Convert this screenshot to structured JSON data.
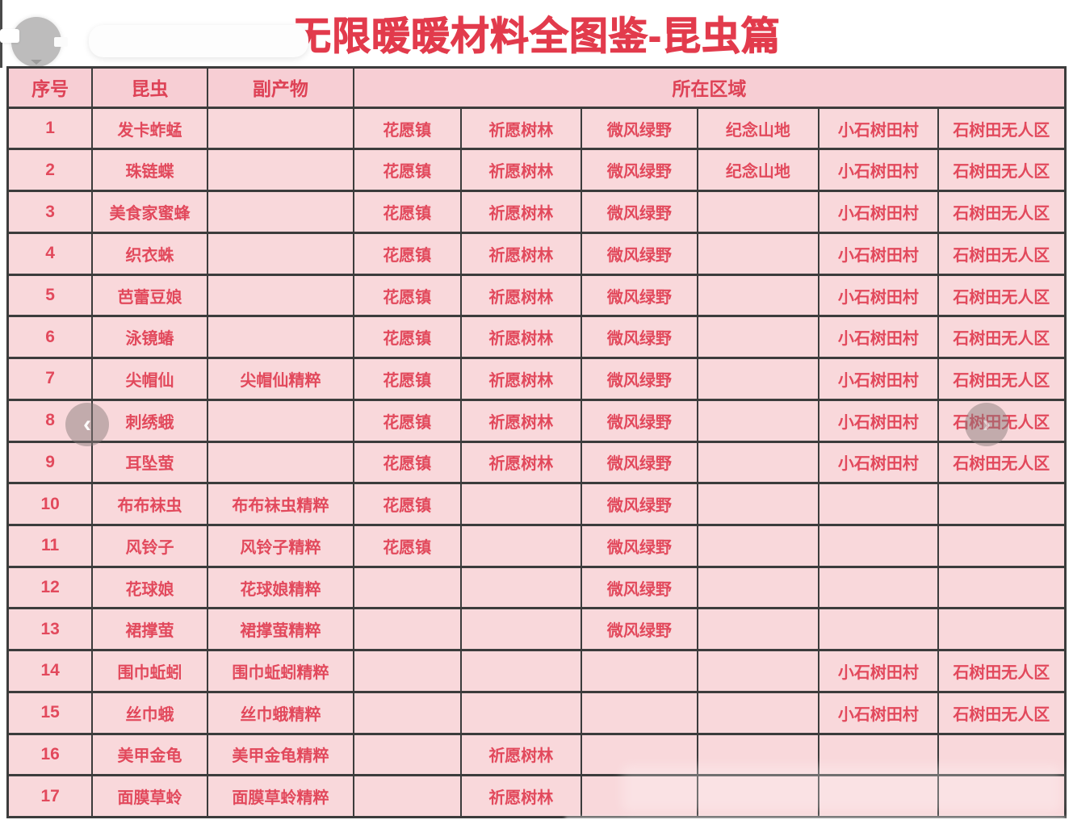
{
  "title": "无限暖暖材料全图鉴-昆虫篇",
  "table": {
    "headers": {
      "index": "序号",
      "insect": "昆虫",
      "byproduct": "副产物",
      "region": "所在区域"
    },
    "region_columns": [
      "花愿镇",
      "祈愿树林",
      "微风绿野",
      "纪念山地",
      "小石树田村",
      "石树田无人区"
    ],
    "rows": [
      {
        "no": "1",
        "insect": "发卡蚱蜢",
        "byproduct": "",
        "regions": [
          "花愿镇",
          "祈愿树林",
          "微风绿野",
          "纪念山地",
          "小石树田村",
          "石树田无人区"
        ]
      },
      {
        "no": "2",
        "insect": "珠链蝶",
        "byproduct": "",
        "regions": [
          "花愿镇",
          "祈愿树林",
          "微风绿野",
          "纪念山地",
          "小石树田村",
          "石树田无人区"
        ]
      },
      {
        "no": "3",
        "insect": "美食家蜜蜂",
        "byproduct": "",
        "regions": [
          "花愿镇",
          "祈愿树林",
          "微风绿野",
          "",
          "小石树田村",
          "石树田无人区"
        ]
      },
      {
        "no": "4",
        "insect": "织衣蛛",
        "byproduct": "",
        "regions": [
          "花愿镇",
          "祈愿树林",
          "微风绿野",
          "",
          "小石树田村",
          "石树田无人区"
        ]
      },
      {
        "no": "5",
        "insect": "芭蕾豆娘",
        "byproduct": "",
        "regions": [
          "花愿镇",
          "祈愿树林",
          "微风绿野",
          "",
          "小石树田村",
          "石树田无人区"
        ]
      },
      {
        "no": "6",
        "insect": "泳镜蝽",
        "byproduct": "",
        "regions": [
          "花愿镇",
          "祈愿树林",
          "微风绿野",
          "",
          "小石树田村",
          "石树田无人区"
        ]
      },
      {
        "no": "7",
        "insect": "尖帽仙",
        "byproduct": "尖帽仙精粹",
        "regions": [
          "花愿镇",
          "祈愿树林",
          "微风绿野",
          "",
          "小石树田村",
          "石树田无人区"
        ]
      },
      {
        "no": "8",
        "insect": "刺绣蛾",
        "byproduct": "",
        "regions": [
          "花愿镇",
          "祈愿树林",
          "微风绿野",
          "",
          "小石树田村",
          "石树田无人区"
        ]
      },
      {
        "no": "9",
        "insect": "耳坠萤",
        "byproduct": "",
        "regions": [
          "花愿镇",
          "祈愿树林",
          "微风绿野",
          "",
          "小石树田村",
          "石树田无人区"
        ]
      },
      {
        "no": "10",
        "insect": "布布袜虫",
        "byproduct": "布布袜虫精粹",
        "regions": [
          "花愿镇",
          "",
          "微风绿野",
          "",
          "",
          ""
        ]
      },
      {
        "no": "11",
        "insect": "风铃子",
        "byproduct": "风铃子精粹",
        "regions": [
          "花愿镇",
          "",
          "微风绿野",
          "",
          "",
          ""
        ]
      },
      {
        "no": "12",
        "insect": "花球娘",
        "byproduct": "花球娘精粹",
        "regions": [
          "",
          "",
          "微风绿野",
          "",
          "",
          ""
        ]
      },
      {
        "no": "13",
        "insect": "裙撑萤",
        "byproduct": "裙撑萤精粹",
        "regions": [
          "",
          "",
          "微风绿野",
          "",
          "",
          ""
        ]
      },
      {
        "no": "14",
        "insect": "围巾蚯蚓",
        "byproduct": "围巾蚯蚓精粹",
        "regions": [
          "",
          "",
          "",
          "",
          "小石树田村",
          "石树田无人区"
        ]
      },
      {
        "no": "15",
        "insect": "丝巾蛾",
        "byproduct": "丝巾蛾精粹",
        "regions": [
          "",
          "",
          "",
          "",
          "小石树田村",
          "石树田无人区"
        ]
      },
      {
        "no": "16",
        "insect": "美甲金龟",
        "byproduct": "美甲金龟精粹",
        "regions": [
          "",
          "祈愿树林",
          "",
          "",
          "",
          ""
        ]
      },
      {
        "no": "17",
        "insect": "面膜草蛉",
        "byproduct": "面膜草蛉精粹",
        "regions": [
          "",
          "祈愿树林",
          "",
          "",
          "",
          ""
        ]
      }
    ]
  },
  "overlays": {
    "prev_icon": "‹",
    "next_icon": "›"
  },
  "colors": {
    "title_red": "#e23b4c",
    "cell_text_red": "#e2495c",
    "cell_bg_pink": "#f9d8db",
    "header_bg_pink": "#f7ced4",
    "grid_line": "#3c3c3c"
  }
}
